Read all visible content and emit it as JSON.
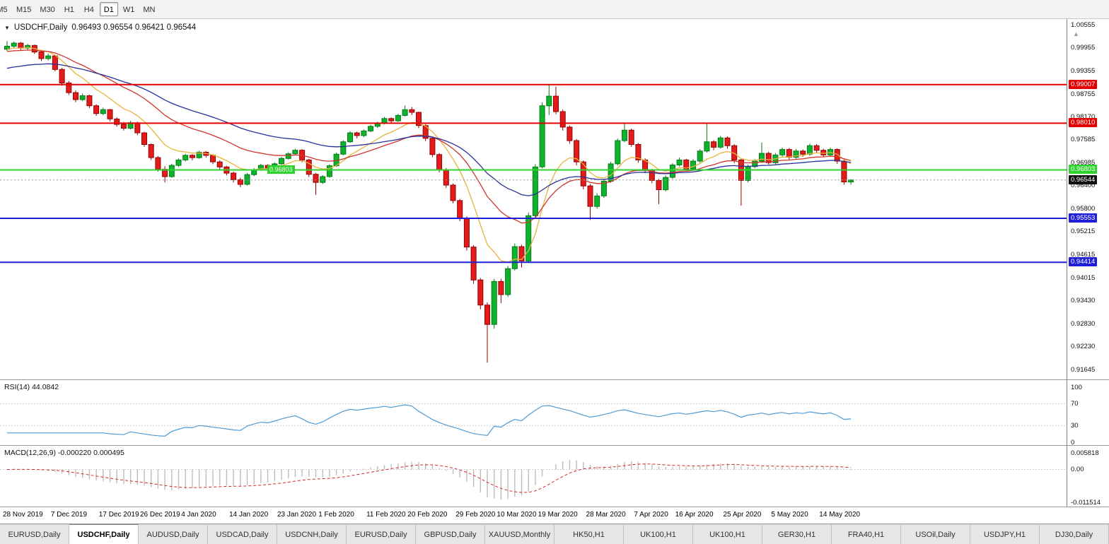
{
  "toolbar": {
    "timeframes": [
      "M5",
      "M15",
      "M30",
      "H1",
      "H4",
      "D1",
      "W1",
      "MN"
    ],
    "active": "D1"
  },
  "chart_header": {
    "symbol": "USDCHF,Daily",
    "ohlc": "0.96493 0.96554 0.96421 0.96544"
  },
  "colors": {
    "bull": "#0cb32b",
    "bull_border": "#067a1a",
    "bear": "#e31b1b",
    "bear_border": "#8f0404",
    "ma_fast": "#e8b33c",
    "ma_mid": "#d0342c",
    "ma_slow": "#28309c",
    "level_red": "#e40000",
    "level_green": "#2fd32f",
    "level_blue": "#1f1fd9",
    "current_badge": "#101010",
    "rsi_line": "#4f9bd5",
    "macd_hist": "#bdbdbd",
    "macd_signal": "#d92626"
  },
  "chart_data": {
    "type": "candlestick",
    "symbol": "USDCHF",
    "timeframe": "Daily",
    "last_ohlc": {
      "open": 0.96493,
      "high": 0.96554,
      "low": 0.96421,
      "close": 0.96544
    },
    "y_axis_range": {
      "max": 1.00555,
      "min": 0.91645
    },
    "y_axis_ticks": [
      "1.00555",
      "0.99955",
      "0.99355",
      "0.98755",
      "0.98170",
      "0.97585",
      "0.96985",
      "0.96400",
      "0.95800",
      "0.95215",
      "0.94615",
      "0.94015",
      "0.93430",
      "0.92830",
      "0.92230",
      "0.91645"
    ],
    "x_labels": [
      {
        "text": "28 Nov 2019",
        "i": 0
      },
      {
        "text": "7 Dec 2019",
        "i": 7
      },
      {
        "text": "17 Dec 2019",
        "i": 14
      },
      {
        "text": "26 Dec 2019",
        "i": 20
      },
      {
        "text": "4 Jan 2020",
        "i": 26
      },
      {
        "text": "14 Jan 2020",
        "i": 33
      },
      {
        "text": "23 Jan 2020",
        "i": 40
      },
      {
        "text": "1 Feb 2020",
        "i": 46
      },
      {
        "text": "11 Feb 2020",
        "i": 53
      },
      {
        "text": "20 Feb 2020",
        "i": 59
      },
      {
        "text": "29 Feb 2020",
        "i": 66
      },
      {
        "text": "10 Mar 2020",
        "i": 72
      },
      {
        "text": "19 Mar 2020",
        "i": 78
      },
      {
        "text": "28 Mar 2020",
        "i": 85
      },
      {
        "text": "7 Apr 2020",
        "i": 92
      },
      {
        "text": "16 Apr 2020",
        "i": 98
      },
      {
        "text": "25 Apr 2020",
        "i": 105
      },
      {
        "text": "5 May 2020",
        "i": 112
      },
      {
        "text": "14 May 2020",
        "i": 119
      }
    ],
    "levels": [
      {
        "price": 0.99007,
        "label": "0.99007",
        "kind": "resistance",
        "color_key": "level_red"
      },
      {
        "price": 0.9801,
        "label": "0.98010",
        "kind": "resistance",
        "color_key": "level_red"
      },
      {
        "price": 0.96803,
        "label": "0.96803",
        "kind": "support",
        "color_key": "level_green",
        "inline_label_x": 378
      },
      {
        "price": 0.95553,
        "label": "0.95553",
        "kind": "support",
        "color_key": "level_blue"
      },
      {
        "price": 0.94414,
        "label": "0.94414",
        "kind": "support",
        "color_key": "level_blue"
      }
    ],
    "current_price": {
      "value": 0.96544,
      "label": "0.96544"
    },
    "indicators": {
      "rsi": {
        "label": "RSI(14) 44.0842",
        "period": 14,
        "value": "44.0842",
        "axis_labels": [
          "100",
          "70",
          "30",
          "0"
        ],
        "guide_levels": [
          70,
          30
        ]
      },
      "macd": {
        "label": "MACD(12,26,9) -0.000220 0.000495",
        "values": "-0.000220 0.000495",
        "axis_labels": [
          "0.005818",
          "0.00",
          "-0.011514"
        ],
        "axis_max": 0.005818,
        "axis_min": -0.011514
      }
    },
    "candles": [
      [
        0.9992,
        1.0013,
        0.9988,
        1.0
      ],
      [
        1.0,
        1.0012,
        0.9994,
        1.0008
      ],
      [
        1.0008,
        1.0011,
        0.999,
        0.9995
      ],
      [
        0.9995,
        1.0006,
        0.9991,
        1.0002
      ],
      [
        1.0002,
        1.0004,
        0.998,
        0.9985
      ],
      [
        0.9985,
        0.9989,
        0.9962,
        0.9968
      ],
      [
        0.9968,
        0.9981,
        0.9963,
        0.9975
      ],
      [
        0.9975,
        0.9978,
        0.9935,
        0.994
      ],
      [
        0.994,
        0.9944,
        0.9898,
        0.9905
      ],
      [
        0.9905,
        0.991,
        0.9874,
        0.988
      ],
      [
        0.988,
        0.9886,
        0.9855,
        0.9862
      ],
      [
        0.9862,
        0.9878,
        0.9858,
        0.9872
      ],
      [
        0.9872,
        0.9875,
        0.984,
        0.9846
      ],
      [
        0.9846,
        0.985,
        0.982,
        0.9826
      ],
      [
        0.9826,
        0.9841,
        0.9822,
        0.9836
      ],
      [
        0.9836,
        0.9838,
        0.9806,
        0.9812
      ],
      [
        0.9812,
        0.9816,
        0.9792,
        0.9798
      ],
      [
        0.9798,
        0.9804,
        0.9782,
        0.9788
      ],
      [
        0.9788,
        0.9807,
        0.9785,
        0.9802
      ],
      [
        0.9802,
        0.9805,
        0.977,
        0.9776
      ],
      [
        0.9776,
        0.9779,
        0.974,
        0.9746
      ],
      [
        0.9746,
        0.9749,
        0.9706,
        0.9712
      ],
      [
        0.9712,
        0.9716,
        0.9676,
        0.9682
      ],
      [
        0.9682,
        0.969,
        0.9648,
        0.9663
      ],
      [
        0.9663,
        0.9696,
        0.966,
        0.9692
      ],
      [
        0.9692,
        0.971,
        0.9688,
        0.9706
      ],
      [
        0.9706,
        0.9722,
        0.9702,
        0.9718
      ],
      [
        0.9718,
        0.9721,
        0.9705,
        0.9712
      ],
      [
        0.9712,
        0.973,
        0.9709,
        0.9726
      ],
      [
        0.9726,
        0.9729,
        0.9712,
        0.9718
      ],
      [
        0.9718,
        0.9721,
        0.9695,
        0.9701
      ],
      [
        0.9701,
        0.9705,
        0.9682,
        0.9688
      ],
      [
        0.9688,
        0.9691,
        0.9666,
        0.9672
      ],
      [
        0.9672,
        0.9676,
        0.9648,
        0.9655
      ],
      [
        0.9655,
        0.966,
        0.9636,
        0.9643
      ],
      [
        0.9643,
        0.9672,
        0.964,
        0.9668
      ],
      [
        0.9668,
        0.9685,
        0.9664,
        0.9681
      ],
      [
        0.9681,
        0.9696,
        0.9678,
        0.9692
      ],
      [
        0.9692,
        0.9695,
        0.9679,
        0.9685
      ],
      [
        0.9685,
        0.97,
        0.9682,
        0.9696
      ],
      [
        0.9696,
        0.9714,
        0.9693,
        0.971
      ],
      [
        0.971,
        0.9726,
        0.9707,
        0.9722
      ],
      [
        0.9722,
        0.9735,
        0.9718,
        0.9731
      ],
      [
        0.9731,
        0.9734,
        0.97,
        0.9706
      ],
      [
        0.9706,
        0.9709,
        0.9662,
        0.9669
      ],
      [
        0.9669,
        0.9672,
        0.9616,
        0.9648
      ],
      [
        0.9648,
        0.9667,
        0.9644,
        0.9663
      ],
      [
        0.9663,
        0.9695,
        0.966,
        0.9691
      ],
      [
        0.9691,
        0.9725,
        0.9688,
        0.9721
      ],
      [
        0.9721,
        0.9757,
        0.9718,
        0.9753
      ],
      [
        0.9753,
        0.978,
        0.975,
        0.9776
      ],
      [
        0.9776,
        0.9779,
        0.9762,
        0.9769
      ],
      [
        0.9769,
        0.9785,
        0.9765,
        0.9781
      ],
      [
        0.9781,
        0.9797,
        0.9778,
        0.9793
      ],
      [
        0.9793,
        0.9805,
        0.9789,
        0.9801
      ],
      [
        0.9801,
        0.9817,
        0.9798,
        0.9813
      ],
      [
        0.9813,
        0.9816,
        0.9801,
        0.9807
      ],
      [
        0.9807,
        0.9825,
        0.9804,
        0.9821
      ],
      [
        0.9821,
        0.9847,
        0.9818,
        0.9836
      ],
      [
        0.9836,
        0.9843,
        0.9822,
        0.9829
      ],
      [
        0.9829,
        0.9831,
        0.9788,
        0.9795
      ],
      [
        0.9795,
        0.9799,
        0.9755,
        0.9762
      ],
      [
        0.9762,
        0.9766,
        0.9713,
        0.972
      ],
      [
        0.972,
        0.9724,
        0.9674,
        0.9681
      ],
      [
        0.9681,
        0.9685,
        0.9634,
        0.9641
      ],
      [
        0.9641,
        0.9645,
        0.9594,
        0.9601
      ],
      [
        0.9601,
        0.9605,
        0.9548,
        0.9556
      ],
      [
        0.9556,
        0.956,
        0.9472,
        0.9481
      ],
      [
        0.9481,
        0.9486,
        0.9386,
        0.9396
      ],
      [
        0.9396,
        0.9401,
        0.932,
        0.9331
      ],
      [
        0.9331,
        0.9338,
        0.9182,
        0.9281
      ],
      [
        0.9281,
        0.9398,
        0.927,
        0.9392
      ],
      [
        0.9392,
        0.9399,
        0.9336,
        0.9358
      ],
      [
        0.9358,
        0.9432,
        0.9352,
        0.9425
      ],
      [
        0.9425,
        0.949,
        0.942,
        0.9482
      ],
      [
        0.9482,
        0.9487,
        0.9428,
        0.9445
      ],
      [
        0.9445,
        0.957,
        0.944,
        0.9562
      ],
      [
        0.9562,
        0.9695,
        0.9556,
        0.9688
      ],
      [
        0.9688,
        0.9855,
        0.9684,
        0.9846
      ],
      [
        0.9846,
        0.9901,
        0.9822,
        0.9871
      ],
      [
        0.9871,
        0.9896,
        0.9824,
        0.9831
      ],
      [
        0.9831,
        0.9836,
        0.9782,
        0.9791
      ],
      [
        0.9791,
        0.9795,
        0.9748,
        0.9756
      ],
      [
        0.9756,
        0.976,
        0.9692,
        0.9701
      ],
      [
        0.9701,
        0.9705,
        0.963,
        0.9639
      ],
      [
        0.9639,
        0.9644,
        0.9551,
        0.9586
      ],
      [
        0.9586,
        0.962,
        0.958,
        0.9613
      ],
      [
        0.9613,
        0.9656,
        0.9608,
        0.9651
      ],
      [
        0.9651,
        0.9701,
        0.9647,
        0.9696
      ],
      [
        0.9696,
        0.9761,
        0.9692,
        0.9756
      ],
      [
        0.9756,
        0.98,
        0.9752,
        0.9783
      ],
      [
        0.9783,
        0.9787,
        0.974,
        0.9746
      ],
      [
        0.9746,
        0.975,
        0.9699,
        0.9706
      ],
      [
        0.9706,
        0.971,
        0.9672,
        0.9679
      ],
      [
        0.9679,
        0.9683,
        0.9646,
        0.9653
      ],
      [
        0.9653,
        0.9657,
        0.9592,
        0.9629
      ],
      [
        0.9629,
        0.9666,
        0.9625,
        0.9661
      ],
      [
        0.9661,
        0.9698,
        0.9657,
        0.9693
      ],
      [
        0.9693,
        0.9712,
        0.9689,
        0.9706
      ],
      [
        0.9706,
        0.9709,
        0.9676,
        0.9683
      ],
      [
        0.9683,
        0.9708,
        0.9679,
        0.9703
      ],
      [
        0.9703,
        0.9734,
        0.9699,
        0.9729
      ],
      [
        0.9729,
        0.98,
        0.9725,
        0.9753
      ],
      [
        0.9753,
        0.9757,
        0.9731,
        0.9739
      ],
      [
        0.9739,
        0.9768,
        0.9735,
        0.9763
      ],
      [
        0.9763,
        0.9767,
        0.9735,
        0.9743
      ],
      [
        0.9743,
        0.9747,
        0.9698,
        0.9706
      ],
      [
        0.9706,
        0.971,
        0.9588,
        0.9653
      ],
      [
        0.9653,
        0.9694,
        0.9648,
        0.9689
      ],
      [
        0.9689,
        0.9708,
        0.9685,
        0.9703
      ],
      [
        0.9703,
        0.9751,
        0.9699,
        0.9723
      ],
      [
        0.9723,
        0.9727,
        0.9694,
        0.9699
      ],
      [
        0.9699,
        0.9724,
        0.9695,
        0.9719
      ],
      [
        0.9719,
        0.9738,
        0.9715,
        0.9733
      ],
      [
        0.9733,
        0.9737,
        0.9707,
        0.9713
      ],
      [
        0.9713,
        0.9734,
        0.9709,
        0.9729
      ],
      [
        0.9729,
        0.9733,
        0.9714,
        0.9721
      ],
      [
        0.9721,
        0.9748,
        0.9717,
        0.9743
      ],
      [
        0.9743,
        0.9747,
        0.9725,
        0.9731
      ],
      [
        0.9731,
        0.9735,
        0.9713,
        0.9719
      ],
      [
        0.9719,
        0.9738,
        0.9715,
        0.9733
      ],
      [
        0.9733,
        0.9736,
        0.9696,
        0.9703
      ],
      [
        0.9703,
        0.9707,
        0.9642,
        0.96493
      ],
      [
        0.96493,
        0.96554,
        0.96421,
        0.96544
      ]
    ]
  },
  "tabs": {
    "items": [
      {
        "label": "EURUSD,Daily",
        "active": false
      },
      {
        "label": "USDCHF,Daily",
        "active": true
      },
      {
        "label": "AUDUSD,Daily",
        "active": false
      },
      {
        "label": "USDCAD,Daily",
        "active": false
      },
      {
        "label": "USDCNH,Daily",
        "active": false
      },
      {
        "label": "EURUSD,Daily",
        "active": false
      },
      {
        "label": "GBPUSD,Daily",
        "active": false
      },
      {
        "label": "XAUUSD,Monthly",
        "active": false
      },
      {
        "label": "HK50,H1",
        "active": false
      },
      {
        "label": "UK100,H1",
        "active": false
      },
      {
        "label": "UK100,H1",
        "active": false
      },
      {
        "label": "GER30,H1",
        "active": false
      },
      {
        "label": "FRA40,H1",
        "active": false
      },
      {
        "label": "USOil,Daily",
        "active": false
      },
      {
        "label": "USDJPY,H1",
        "active": false
      },
      {
        "label": "DJ30,Daily",
        "active": false
      }
    ]
  }
}
